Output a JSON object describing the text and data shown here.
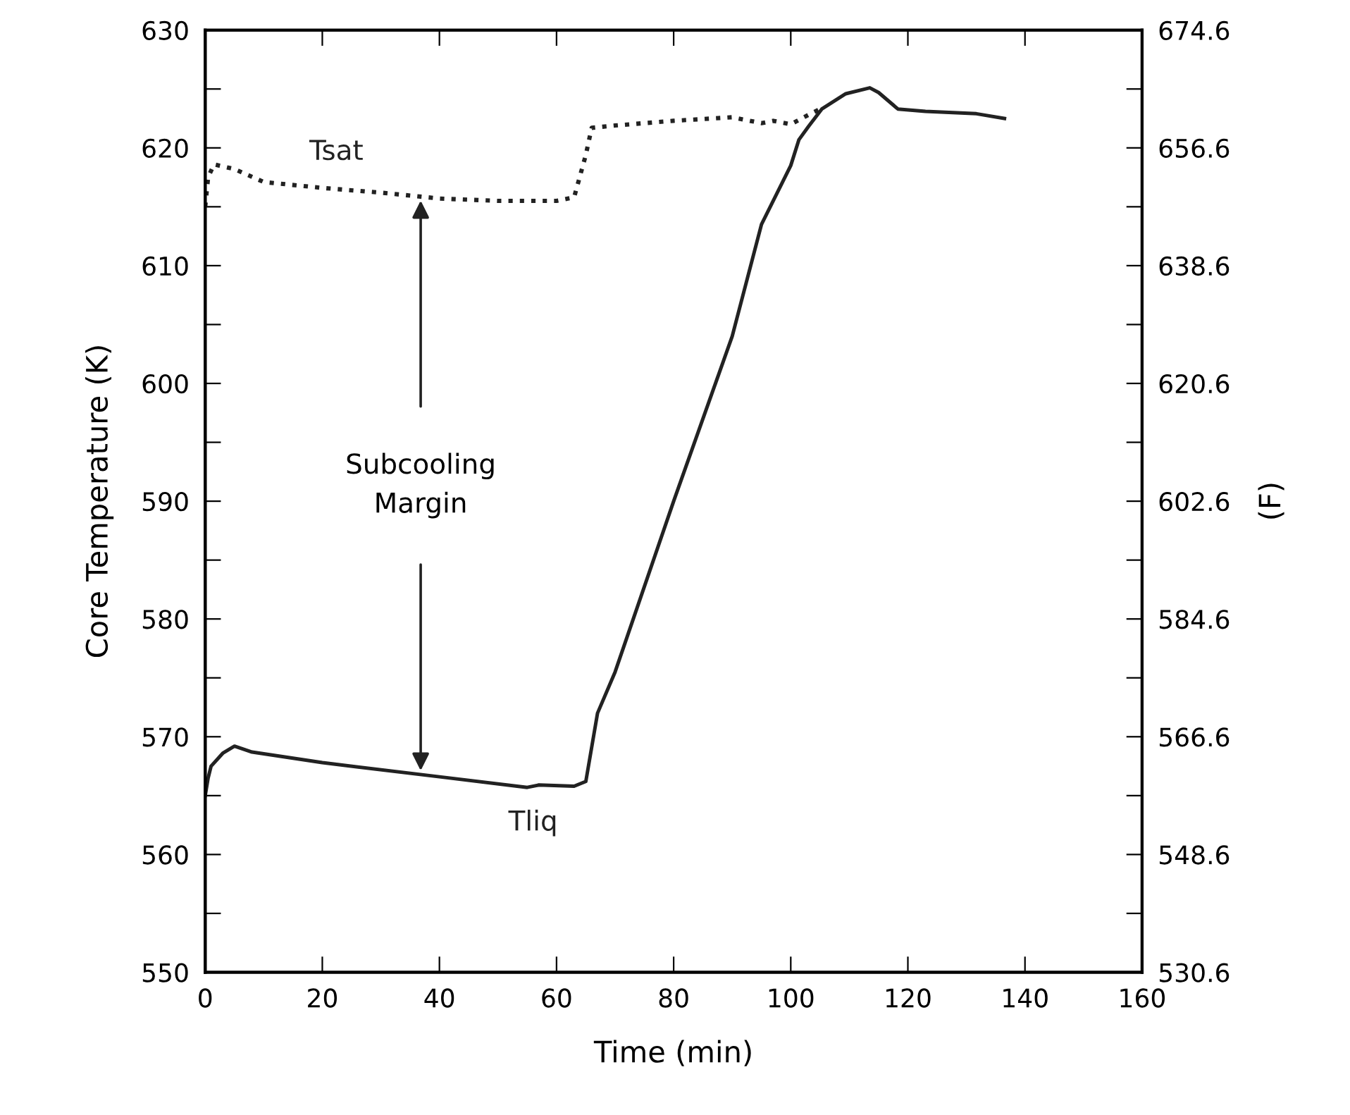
{
  "chart_data": {
    "type": "line",
    "xlabel": "Time (min)",
    "ylabel": "Core Temperature (K)",
    "y2label": "(F)",
    "xlim": [
      0,
      160
    ],
    "xticks": [
      0,
      20,
      40,
      60,
      80,
      100,
      120,
      140,
      160
    ],
    "ylim": [
      550,
      630
    ],
    "yticks": [
      550,
      {
        "value": 555,
        "label": null
      },
      560,
      {
        "value": 565,
        "label": null
      },
      570,
      {
        "value": 575,
        "label": null
      },
      580,
      {
        "value": 585,
        "label": null
      },
      590,
      {
        "value": 595,
        "label": null
      },
      600,
      {
        "value": 605,
        "label": null
      },
      610,
      {
        "value": 615,
        "label": null
      },
      620,
      {
        "value": 625,
        "label": null
      },
      630
    ],
    "y2lim": [
      530.6,
      674.6
    ],
    "y2ticks": [
      530.6,
      {
        "value": 539.6,
        "label": null
      },
      548.6,
      {
        "value": 557.6,
        "label": null
      },
      566.6,
      {
        "value": 575.6,
        "label": null
      },
      584.6,
      {
        "value": 593.6,
        "label": null
      },
      602.6,
      {
        "value": 611.6,
        "label": null
      },
      620.6,
      {
        "value": 629.6,
        "label": null
      },
      638.6,
      {
        "value": 647.6,
        "label": null
      },
      656.6,
      {
        "value": 665.6,
        "label": null
      },
      674.6
    ],
    "grid": false,
    "legend": false,
    "series": [
      {
        "name": "Tsat",
        "color": "#222222",
        "line_style": "dotted",
        "x": [
          0,
          0.5,
          1.5,
          5,
          10,
          20,
          30,
          40,
          50,
          60,
          63,
          65,
          66,
          70,
          80,
          90,
          95,
          97,
          100,
          103,
          105
        ],
        "values": [
          615,
          617.5,
          618.6,
          618.2,
          617.1,
          616.6,
          616.2,
          615.7,
          615.5,
          615.5,
          615.8,
          619.4,
          621.7,
          621.9,
          622.3,
          622.6,
          622.1,
          622.3,
          622.0,
          622.8,
          623.3
        ]
      },
      {
        "name": "Tliq",
        "color": "#222222",
        "line_style": "solid",
        "x": [
          0,
          0.5,
          1,
          3,
          5,
          8,
          20,
          40,
          55,
          57,
          63,
          65,
          67,
          70,
          80,
          90,
          95,
          100,
          101.4,
          103,
          105.3,
          109.4,
          113.5,
          115,
          118.3,
          123,
          131.7,
          136.5
        ],
        "values": [
          565,
          566.5,
          567.5,
          568.6,
          569.2,
          568.7,
          567.8,
          566.6,
          565.7,
          565.9,
          565.8,
          566.2,
          572,
          575.5,
          590,
          604,
          613.5,
          618.5,
          620.7,
          621.8,
          623.3,
          624.6,
          625.1,
          624.7,
          623.3,
          623.1,
          622.9,
          622.5
        ]
      }
    ],
    "annotations": [
      "Subcooling\nMargin"
    ]
  }
}
